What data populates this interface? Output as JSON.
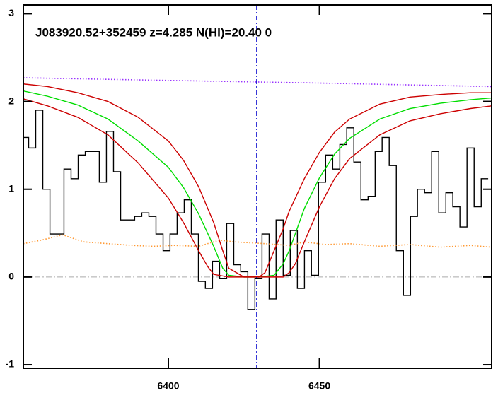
{
  "chart_data": {
    "type": "line",
    "title": "J083920.52+352459 z=4.285 N(HI)=20.40 0",
    "xlim": [
      6352,
      6507
    ],
    "ylim": [
      -1.04,
      3.1
    ],
    "xticks": [
      6400,
      6450
    ],
    "yticks": [
      -1,
      0,
      1,
      2,
      3
    ],
    "vline": 6429.2,
    "vline_color": "#0000cc",
    "hline": 0,
    "hline_color": "#aaaaaa",
    "series": [
      {
        "color": "#000000",
        "style": "step",
        "x": [
          6352.6,
          6354.9,
          6357.3,
          6359.6,
          6362.0,
          6364.3,
          6366.6,
          6369.0,
          6371.3,
          6373.7,
          6376.0,
          6378.3,
          6380.7,
          6383.0,
          6385.4,
          6387.7,
          6390.0,
          6392.4,
          6394.7,
          6397.1,
          6399.4,
          6401.7,
          6404.1,
          6406.4,
          6408.8,
          6411.1,
          6413.4,
          6415.8,
          6418.1,
          6420.5,
          6422.8,
          6425.1,
          6427.5,
          6429.8,
          6432.2,
          6434.5,
          6436.8,
          6439.2,
          6441.5,
          6443.9,
          6446.2,
          6448.5,
          6450.9,
          6453.2,
          6455.6,
          6457.9,
          6460.2,
          6462.6,
          6464.9,
          6467.3,
          6469.6,
          6471.9,
          6474.3,
          6476.6,
          6479.0,
          6481.3,
          6483.6,
          6486.0,
          6488.3,
          6490.7,
          6493.0,
          6495.3,
          6497.7,
          6500.0,
          6502.4,
          6504.7
        ],
        "values": [
          1.59,
          1.47,
          1.9,
          1.0,
          0.49,
          0.49,
          1.23,
          1.12,
          1.39,
          1.43,
          1.43,
          1.08,
          1.66,
          1.2,
          0.65,
          0.65,
          0.69,
          0.73,
          0.69,
          0.49,
          0.3,
          0.49,
          0.73,
          0.88,
          0.49,
          -0.05,
          -0.13,
          0.18,
          -0.02,
          0.61,
          0.14,
          0.06,
          -0.37,
          -0.02,
          0.49,
          -0.25,
          0.65,
          0.02,
          0.53,
          -0.13,
          0.3,
          0.02,
          1.08,
          1.39,
          1.23,
          1.51,
          1.7,
          1.31,
          0.88,
          0.92,
          1.43,
          1.59,
          1.27,
          0.3,
          -0.21,
          0.69,
          1.0,
          0.96,
          1.43,
          0.73,
          0.96,
          0.8,
          0.57,
          1.47,
          0.8,
          1.12
        ]
      },
      {
        "color": "#00dd00",
        "style": "line",
        "x": [
          6352,
          6360,
          6370,
          6380,
          6390,
          6400,
          6405,
          6410,
          6415,
          6418,
          6420,
          6425,
          6430,
          6435,
          6438,
          6440,
          6445,
          6450,
          6455,
          6460,
          6470,
          6480,
          6490,
          6500,
          6507
        ],
        "values": [
          2.12,
          2.06,
          1.96,
          1.8,
          1.55,
          1.25,
          1.02,
          0.72,
          0.35,
          0.1,
          0.02,
          0,
          0,
          0.02,
          0.15,
          0.3,
          0.78,
          1.13,
          1.4,
          1.58,
          1.8,
          1.92,
          1.98,
          2.02,
          2.04
        ]
      },
      {
        "color": "#cc0000",
        "style": "line",
        "x": [
          6352,
          6360,
          6370,
          6380,
          6390,
          6400,
          6405,
          6410,
          6415,
          6418,
          6420,
          6425,
          6430,
          6432,
          6435,
          6438,
          6440,
          6445,
          6450,
          6455,
          6460,
          6470,
          6480,
          6490,
          6500,
          6507
        ],
        "values": [
          2.2,
          2.17,
          2.1,
          2.0,
          1.82,
          1.55,
          1.33,
          1.03,
          0.62,
          0.3,
          0.1,
          0,
          0,
          0.05,
          0.3,
          0.55,
          0.75,
          1.12,
          1.42,
          1.65,
          1.8,
          1.97,
          2.05,
          2.08,
          2.1,
          2.1
        ]
      },
      {
        "color": "#cc0000",
        "style": "line",
        "x": [
          6352,
          6360,
          6370,
          6380,
          6390,
          6400,
          6405,
          6410,
          6413,
          6415,
          6420,
          6430,
          6438,
          6440,
          6442,
          6445,
          6450,
          6455,
          6460,
          6470,
          6480,
          6490,
          6500,
          6507
        ],
        "values": [
          2.03,
          1.95,
          1.82,
          1.62,
          1.3,
          0.9,
          0.62,
          0.3,
          0.12,
          0.03,
          0,
          0,
          0,
          0.05,
          0.15,
          0.4,
          0.8,
          1.12,
          1.35,
          1.62,
          1.78,
          1.86,
          1.92,
          1.95
        ]
      },
      {
        "color": "#ff9933",
        "style": "dotted",
        "x": [
          6352,
          6358,
          6365,
          6372,
          6380,
          6388,
          6395,
          6402,
          6410,
          6417,
          6422,
          6432,
          6440,
          6445,
          6452,
          6460,
          6470,
          6480,
          6490,
          6500,
          6507
        ],
        "values": [
          0.38,
          0.42,
          0.48,
          0.4,
          0.38,
          0.36,
          0.35,
          0.36,
          0.35,
          0.42,
          0.4,
          0.38,
          0.36,
          0.4,
          0.37,
          0.38,
          0.35,
          0.37,
          0.34,
          0.36,
          0.34
        ]
      },
      {
        "color": "#9933ff",
        "style": "dotted",
        "x": [
          6352,
          6400,
          6450,
          6507
        ],
        "values": [
          2.27,
          2.24,
          2.21,
          2.17
        ]
      }
    ]
  }
}
